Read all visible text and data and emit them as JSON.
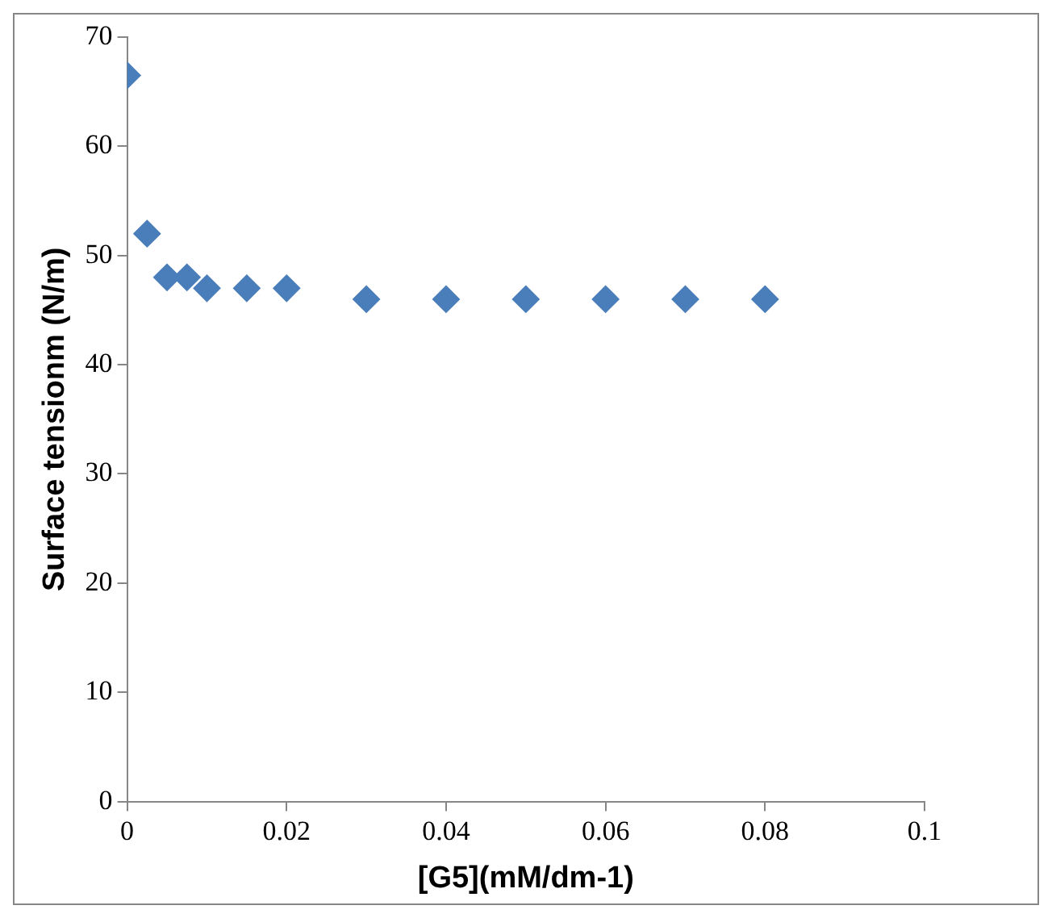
{
  "chart_data": {
    "type": "scatter",
    "xlabel": "[G5](mM/dm-1)",
    "ylabel": "Surface tensionm (N/m)",
    "x": [
      0,
      0.0025,
      0.005,
      0.0075,
      0.01,
      0.015,
      0.02,
      0.03,
      0.04,
      0.05,
      0.06,
      0.07,
      0.08
    ],
    "values": [
      66.5,
      52,
      48,
      48,
      47,
      47,
      47,
      46,
      46,
      46,
      46,
      46,
      46
    ],
    "color": "#4a7ebb",
    "marker": "diamond",
    "grid": false,
    "xlim": [
      0,
      0.1
    ],
    "xticks": [
      0,
      0.02,
      0.04,
      0.06,
      0.08,
      0.1
    ],
    "ylim": [
      0,
      70
    ],
    "yticks": [
      0,
      10,
      20,
      30,
      40,
      50,
      60,
      70
    ]
  }
}
